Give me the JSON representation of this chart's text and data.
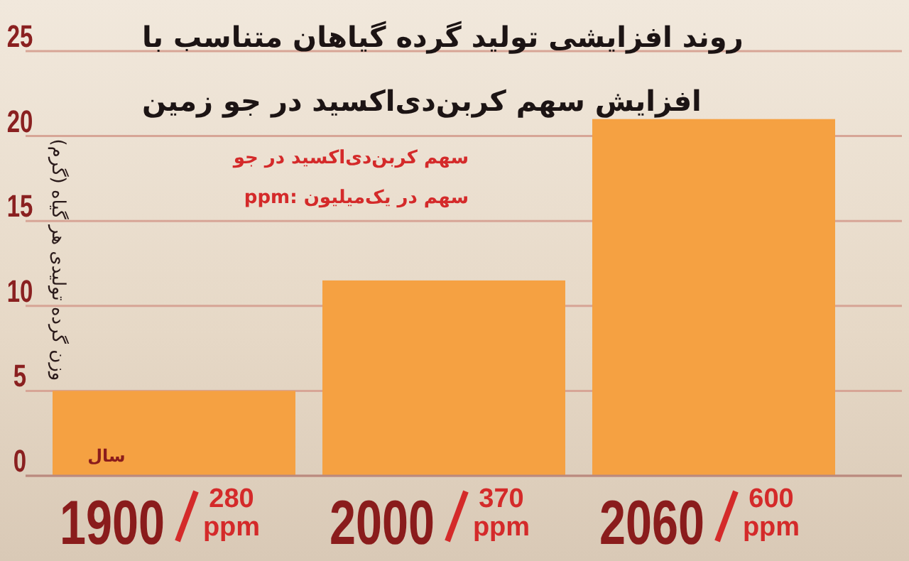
{
  "chart_data": {
    "type": "bar",
    "title": "روند افزایشی تولید گرده گیاهان متناسب با افزایش سهم کربن‌دی‌اکسید در جو زمین",
    "ylabel": "وزن گرده تولیدی هر گیاه (گرم)",
    "xlabel": "سال",
    "categories": [
      "1900",
      "2000",
      "2060"
    ],
    "values": [
      5,
      11.5,
      21
    ],
    "color": "#f5a142",
    "ylim": [
      0,
      25
    ],
    "yticks": [
      0,
      5,
      10,
      15,
      20,
      25
    ],
    "grid": "y",
    "annotations": [
      "سهم کربن‌دی‌اکسید در جو",
      "سهم در یک‌میلیون :ppm",
      "280 ppm",
      "370 ppm",
      "600 ppm"
    ]
  }
}
